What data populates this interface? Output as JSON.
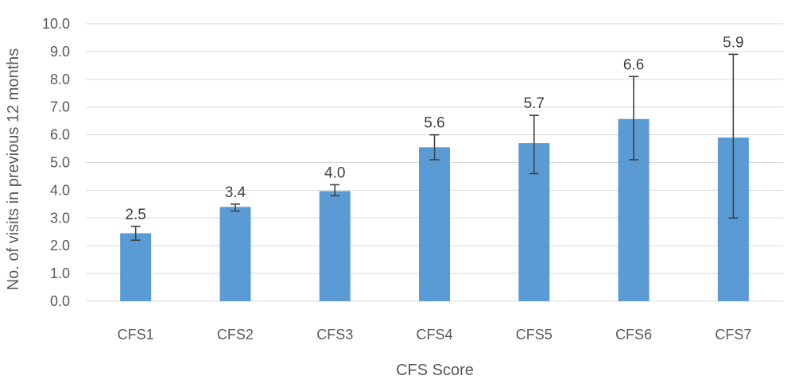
{
  "chart_data": {
    "type": "bar",
    "title": "",
    "xlabel": "CFS Score",
    "ylabel": "No. of visits in previous 12 months",
    "categories": [
      "CFS1",
      "CFS2",
      "CFS3",
      "CFS4",
      "CFS5",
      "CFS6",
      "CFS7"
    ],
    "values": [
      2.45,
      3.4,
      3.97,
      5.55,
      5.7,
      6.57,
      5.9
    ],
    "value_labels": [
      "2.5",
      "3.4",
      "4.0",
      "5.6",
      "5.7",
      "6.6",
      "5.9"
    ],
    "error_low": [
      2.2,
      3.25,
      3.8,
      5.1,
      4.6,
      5.1,
      3.0
    ],
    "error_high": [
      2.7,
      3.5,
      4.2,
      6.0,
      6.7,
      8.1,
      8.9
    ],
    "ylim": [
      0,
      10
    ],
    "yticks": [
      0,
      1,
      2,
      3,
      4,
      5,
      6,
      7,
      8,
      9,
      10
    ],
    "ytick_labels": [
      "0.0",
      "1.0",
      "2.0",
      "3.0",
      "4.0",
      "5.0",
      "6.0",
      "7.0",
      "8.0",
      "9.0",
      "10.0"
    ],
    "grid": true,
    "legend": "none",
    "bar_color": "#5b9bd5",
    "error_color": "#404040",
    "grid_color": "#d9d9d9"
  }
}
